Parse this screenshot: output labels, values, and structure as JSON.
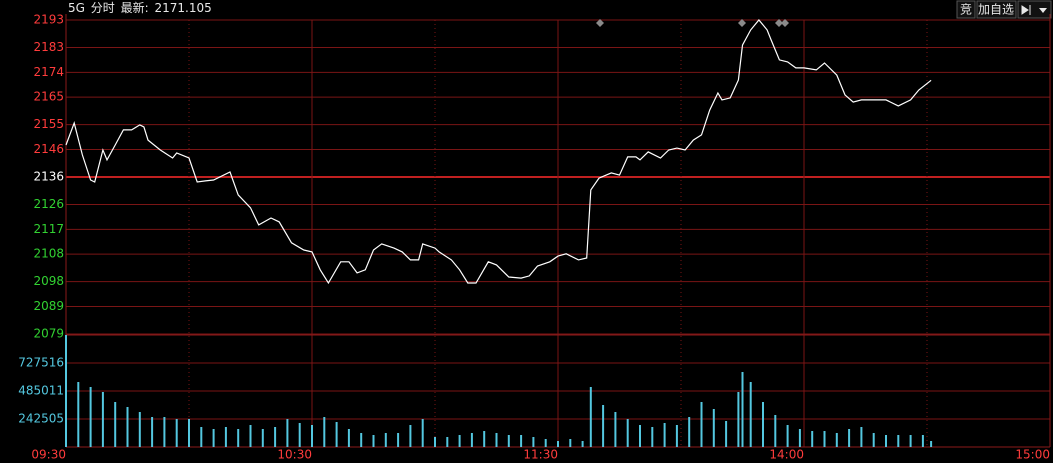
{
  "header": {
    "symbol": "5G",
    "mode": "分时",
    "last_label": "最新:",
    "last": 2171.105
  },
  "toolbar": {
    "buttons": [
      "竞",
      "加自选"
    ]
  },
  "chart_data": [
    {
      "type": "line",
      "x": [
        0,
        2,
        4,
        6,
        7,
        9,
        10,
        12,
        14,
        16,
        18,
        19,
        20,
        23,
        26,
        27,
        30,
        32,
        34,
        36,
        40,
        42,
        45,
        47,
        50,
        52,
        55,
        58,
        60,
        62,
        64,
        67,
        69,
        71,
        73,
        75,
        77,
        80,
        82,
        84,
        86,
        87,
        90,
        91,
        94,
        96,
        98,
        100,
        103,
        105,
        108,
        111,
        113,
        115,
        118,
        120,
        122,
        125,
        127,
        128,
        130,
        133,
        135,
        137,
        139,
        140,
        142,
        145,
        147,
        149,
        151,
        153,
        155,
        157,
        159,
        160,
        162,
        164,
        165,
        167,
        169,
        171,
        172,
        174,
        176,
        178,
        180,
        183,
        185,
        188,
        190,
        192,
        194,
        197,
        200,
        203,
        206,
        208,
        211
      ],
      "series": [
        {
          "color": "#ffffff",
          "values": [
            2147.6,
            2155.6,
            2144.0,
            2134.9,
            2134.2,
            2145.8,
            2142.2,
            2147.6,
            2153.1,
            2153.1,
            2154.9,
            2154.2,
            2149.4,
            2145.8,
            2142.9,
            2144.7,
            2142.9,
            2134.2,
            2134.6,
            2134.9,
            2137.8,
            2129.5,
            2124.8,
            2118.6,
            2121.1,
            2119.7,
            2112.1,
            2109.5,
            2108.8,
            2102.3,
            2097.5,
            2105.2,
            2105.2,
            2101.2,
            2102.3,
            2109.5,
            2111.7,
            2110.2,
            2108.8,
            2105.9,
            2105.9,
            2111.7,
            2110.2,
            2108.8,
            2105.9,
            2102.3,
            2097.5,
            2097.5,
            2105.2,
            2104.1,
            2099.7,
            2099.3,
            2100.1,
            2103.7,
            2105.2,
            2107.3,
            2108.1,
            2105.9,
            2106.6,
            2131.3,
            2135.6,
            2137.5,
            2136.7,
            2143.3,
            2143.3,
            2142.2,
            2145.1,
            2142.9,
            2145.8,
            2146.5,
            2145.8,
            2149.4,
            2151.3,
            2160.3,
            2166.5,
            2164.0,
            2164.7,
            2171.2,
            2183.9,
            2189.4,
            2193.0,
            2189.4,
            2185.7,
            2178.5,
            2177.8,
            2175.6,
            2175.6,
            2174.9,
            2177.4,
            2173.0,
            2165.8,
            2163.2,
            2164.0,
            2164.0,
            2164.0,
            2161.8,
            2164.0,
            2167.6,
            2171.1
          ]
        }
      ],
      "xlim": [
        0,
        240
      ],
      "ylim": [
        2079,
        2193
      ],
      "yticks": [
        2193,
        2183,
        2174,
        2165,
        2155,
        2146,
        2136,
        2126,
        2117,
        2108,
        2098,
        2089,
        2079
      ],
      "grid": true,
      "tick_colors": {
        "up": "#ff3c3c",
        "flat": "#ffffff",
        "down": "#32d232"
      }
    },
    {
      "type": "bar",
      "x": [
        0,
        3,
        6,
        9,
        12,
        15,
        18,
        21,
        24,
        27,
        30,
        33,
        36,
        39,
        42,
        45,
        48,
        51,
        54,
        57,
        60,
        63,
        66,
        69,
        72,
        75,
        78,
        81,
        84,
        87,
        90,
        93,
        96,
        99,
        102,
        105,
        108,
        111,
        114,
        117,
        120,
        123,
        126,
        128,
        131,
        134,
        137,
        140,
        143,
        146,
        149,
        152,
        155,
        158,
        161,
        164,
        165,
        167,
        170,
        173,
        176,
        179,
        182,
        185,
        188,
        191,
        194,
        197,
        200,
        203,
        206,
        209,
        211
      ],
      "values": [
        970000,
        563000,
        519700,
        476400,
        389700,
        346400,
        303100,
        259800,
        259800,
        242500,
        242500,
        173200,
        155900,
        173200,
        155900,
        190500,
        155900,
        173200,
        242500,
        207900,
        190500,
        259800,
        216500,
        155900,
        121300,
        103900,
        121300,
        121300,
        190500,
        242500,
        86600,
        86600,
        103900,
        121300,
        138600,
        121300,
        103900,
        103900,
        86600,
        69300,
        52000,
        69300,
        52000,
        519700,
        363800,
        303100,
        242500,
        190500,
        173200,
        207900,
        190500,
        259800,
        389700,
        329100,
        225200,
        476400,
        649600,
        563000,
        389700,
        277200,
        190500,
        155900,
        138600,
        138600,
        121300,
        155900,
        173200,
        121300,
        103900,
        103900,
        103900,
        103900,
        52000
      ],
      "color": "#54c8e0",
      "xlim": [
        0,
        240
      ],
      "ylim": [
        0,
        970021
      ],
      "yticks": [
        242505,
        485011,
        727516
      ],
      "xticks": [
        {
          "value": 0,
          "label": "09:30"
        },
        {
          "value": 60,
          "label": "10:30"
        },
        {
          "value": 120,
          "label": "11:30"
        },
        {
          "value": 180,
          "label": "14:00"
        },
        {
          "value": 240,
          "label": "15:00"
        }
      ],
      "grid": true
    }
  ]
}
